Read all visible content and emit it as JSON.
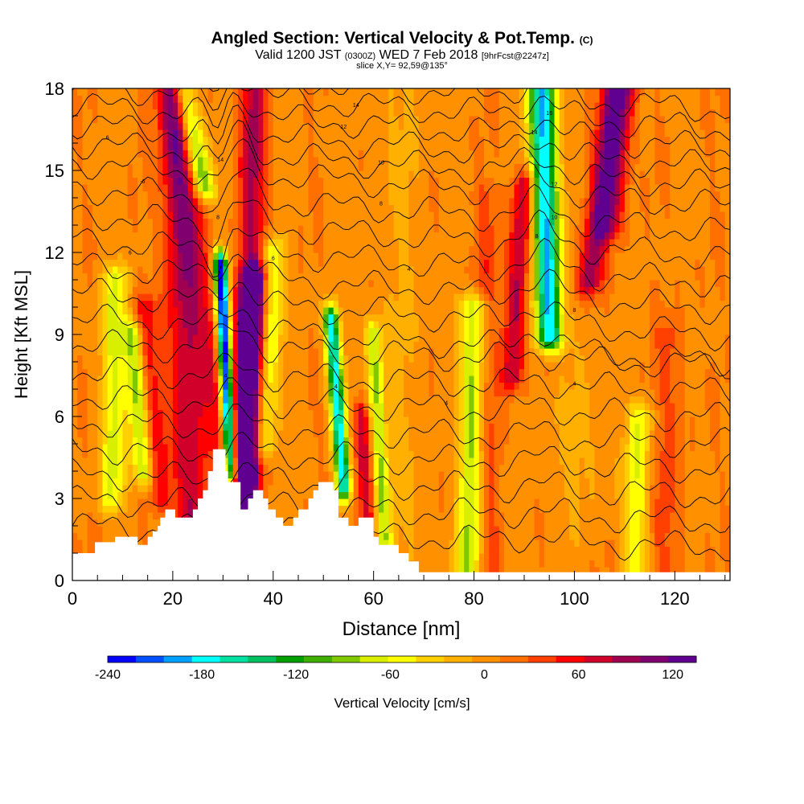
{
  "header": {
    "title": "Angled Section: Vertical Velocity & Pot.Temp.",
    "title_suffix": "(C)",
    "valid_prefix": "Valid 1200 JST",
    "valid_utc": "(0300Z)",
    "valid_day": "WED 7 Feb 2018",
    "forecast": "[9hrFcst@2247z]",
    "slice": "slice X,Y= 92,59@135°"
  },
  "chart_data": {
    "type": "heatmap",
    "xlabel": "Distance [nm]",
    "ylabel": "Height [Kft MSL]",
    "xlim": [
      0,
      131
    ],
    "ylim": [
      0,
      18
    ],
    "x_ticks": [
      0,
      20,
      40,
      60,
      80,
      100,
      120
    ],
    "y_ticks": [
      0,
      3,
      6,
      9,
      12,
      15,
      18
    ],
    "colorbar": {
      "label": "Vertical Velocity [cm/s]",
      "min": -240,
      "max": 135,
      "tick_values": [
        -240,
        -180,
        -120,
        -60,
        0,
        60,
        120
      ],
      "tick_labels": [
        "-240",
        "-180",
        "-120",
        "-60",
        "0",
        "60",
        "120"
      ],
      "colors": [
        "#0000ff",
        "#0050ff",
        "#00a0ff",
        "#00ffff",
        "#00e0a0",
        "#00c060",
        "#00a000",
        "#40b000",
        "#80c800",
        "#d8f000",
        "#ffff00",
        "#ffd000",
        "#ffb000",
        "#ff9000",
        "#ff7000",
        "#ff4000",
        "#ff0000",
        "#d0002a",
        "#a00050",
        "#800070",
        "#600090"
      ]
    },
    "terrain": [
      [
        0,
        1
      ],
      [
        4.5,
        1
      ],
      [
        4.5,
        1.4
      ],
      [
        8.5,
        1.4
      ],
      [
        8.5,
        1.6
      ],
      [
        13,
        1.6
      ],
      [
        13,
        1.3
      ],
      [
        15,
        1.3
      ],
      [
        15,
        1.6
      ],
      [
        16,
        1.6
      ],
      [
        16,
        1.8
      ],
      [
        17,
        1.8
      ],
      [
        17,
        2
      ],
      [
        17.5,
        2
      ],
      [
        17.5,
        2.3
      ],
      [
        18.5,
        2.3
      ],
      [
        18.5,
        2.6
      ],
      [
        20.5,
        2.6
      ],
      [
        20.5,
        2.3
      ],
      [
        24,
        2.3
      ],
      [
        24,
        2.6
      ],
      [
        25,
        2.6
      ],
      [
        25,
        3
      ],
      [
        26,
        3
      ],
      [
        26,
        3.3
      ],
      [
        27,
        3.3
      ],
      [
        27,
        4
      ],
      [
        28,
        4
      ],
      [
        28,
        4.8
      ],
      [
        30.5,
        4.8
      ],
      [
        30.5,
        4
      ],
      [
        31,
        4
      ],
      [
        31,
        3.6
      ],
      [
        33.5,
        3.6
      ],
      [
        33.5,
        2.6
      ],
      [
        35,
        2.6
      ],
      [
        35,
        3
      ],
      [
        36,
        3
      ],
      [
        36,
        3.3
      ],
      [
        38,
        3.3
      ],
      [
        38,
        3
      ],
      [
        39,
        3
      ],
      [
        39,
        2.6
      ],
      [
        40.5,
        2.6
      ],
      [
        40.5,
        2.3
      ],
      [
        42,
        2.3
      ],
      [
        42,
        2
      ],
      [
        44,
        2
      ],
      [
        44,
        2.3
      ],
      [
        45,
        2.3
      ],
      [
        45,
        2.6
      ],
      [
        47,
        2.6
      ],
      [
        47,
        3
      ],
      [
        48,
        3
      ],
      [
        48,
        3.3
      ],
      [
        49,
        3.3
      ],
      [
        49,
        3.6
      ],
      [
        52,
        3.6
      ],
      [
        52,
        3.3
      ],
      [
        53,
        3.3
      ],
      [
        53,
        2.3
      ],
      [
        55,
        2.3
      ],
      [
        55,
        2
      ],
      [
        57,
        2
      ],
      [
        57,
        2.3
      ],
      [
        60,
        2.3
      ],
      [
        60,
        1.6
      ],
      [
        61,
        1.6
      ],
      [
        61,
        1.3
      ],
      [
        65,
        1.3
      ],
      [
        65,
        1
      ],
      [
        67,
        1
      ],
      [
        67,
        0.7
      ],
      [
        69,
        0.7
      ],
      [
        69,
        0.3
      ],
      [
        131,
        0.3
      ]
    ],
    "updrafts": [
      {
        "name": "u1",
        "peak": 75,
        "y0": 0.5,
        "y1": 18,
        "x0": 24,
        "x1": 20,
        "width": 3.2
      },
      {
        "name": "u2",
        "peak": 55,
        "y0": 4,
        "y1": 18,
        "x0": 30,
        "x1": 20,
        "width": 2.5
      },
      {
        "name": "u3",
        "peak": 135,
        "y0": 3,
        "y1": 11,
        "x0": 33.5,
        "x1": 36,
        "width": 2.6
      },
      {
        "name": "u4",
        "peak": 80,
        "y0": 2,
        "y1": 18,
        "x0": 35,
        "x1": 36,
        "width": 2.6
      },
      {
        "name": "u5",
        "peak": 45,
        "y0": 3,
        "y1": 10,
        "x0": 18,
        "x1": 14.5,
        "width": 2.5
      },
      {
        "name": "u6",
        "peak": 70,
        "y0": 1.5,
        "y1": 6,
        "x0": 59,
        "x1": 57.5,
        "width": 1.6
      },
      {
        "name": "u7",
        "peak": 80,
        "y0": 7.5,
        "y1": 14.5,
        "x0": 87.5,
        "x1": 90,
        "width": 2.2
      },
      {
        "name": "u8",
        "peak": 90,
        "y0": 11,
        "y1": 18,
        "x0": 103,
        "x1": 108,
        "width": 2.5
      },
      {
        "name": "u9",
        "peak": 70,
        "y0": 13,
        "y1": 18,
        "x0": 107,
        "x1": 110,
        "width": 2.6
      },
      {
        "name": "u10",
        "peak": 30,
        "y0": 0.3,
        "y1": 14,
        "x0": 83,
        "x1": 82,
        "width": 2.5
      },
      {
        "name": "u11",
        "peak": 25,
        "y0": 0.3,
        "y1": 9,
        "x0": 118,
        "x1": 119,
        "width": 3
      }
    ],
    "downdrafts": [
      {
        "name": "d1",
        "peak": -110,
        "y0": 14.5,
        "y1": 18,
        "x0": 26,
        "x1": 22,
        "width": 2.3
      },
      {
        "name": "d2",
        "peak": -70,
        "y0": 3,
        "y1": 11,
        "x0": 8,
        "x1": 8.5,
        "width": 2.5
      },
      {
        "name": "d3",
        "peak": -90,
        "y0": 4,
        "y1": 9,
        "x0": 14,
        "x1": 12,
        "width": 2
      },
      {
        "name": "d4",
        "peak": -245,
        "y0": 4,
        "y1": 11.5,
        "x0": 31.5,
        "x1": 29.5,
        "width": 1.3
      },
      {
        "name": "d5",
        "peak": -70,
        "y0": 5,
        "y1": 12,
        "x0": 38,
        "x1": 40,
        "width": 2.5
      },
      {
        "name": "d6",
        "peak": -190,
        "y0": 3.5,
        "y1": 9.5,
        "x0": 54,
        "x1": 51.5,
        "width": 1.4
      },
      {
        "name": "d7",
        "peak": -80,
        "y0": 1.5,
        "y1": 9,
        "x0": 62,
        "x1": 60,
        "width": 1.6
      },
      {
        "name": "d8",
        "peak": -200,
        "y0": 9,
        "y1": 18,
        "x0": 95,
        "x1": 93.5,
        "width": 2.6
      },
      {
        "name": "d9",
        "peak": -90,
        "y0": 0.3,
        "y1": 10,
        "x0": 79,
        "x1": 80,
        "width": 2.5
      },
      {
        "name": "d10",
        "peak": -60,
        "y0": 0.3,
        "y1": 6,
        "x0": 112,
        "x1": 113,
        "width": 2.5
      }
    ],
    "contour_labels": [
      {
        "text": "6",
        "x": 7,
        "y": 16.2
      },
      {
        "text": "6",
        "x": 11.5,
        "y": 12
      },
      {
        "text": "-6",
        "x": 14,
        "y": 14.6
      },
      {
        "text": "14",
        "x": 56.5,
        "y": 17.4
      },
      {
        "text": "12",
        "x": 54,
        "y": 16.6
      },
      {
        "text": "10",
        "x": 61.5,
        "y": 15.3
      },
      {
        "text": "8",
        "x": 61.5,
        "y": 13.8
      },
      {
        "text": "6",
        "x": 40,
        "y": 11.8
      },
      {
        "text": "4",
        "x": 67,
        "y": 11.4
      },
      {
        "text": "16",
        "x": 95,
        "y": 17.1
      },
      {
        "text": "14",
        "x": 92,
        "y": 16.4
      },
      {
        "text": "12",
        "x": 96,
        "y": 14.5
      },
      {
        "text": "10",
        "x": 96,
        "y": 13.3
      },
      {
        "text": "8",
        "x": 92.5,
        "y": 12.6
      },
      {
        "text": "8",
        "x": 100,
        "y": 9.9
      },
      {
        "text": "4",
        "x": 100,
        "y": 7.2
      },
      {
        "text": "4",
        "x": 74.5,
        "y": 6.5
      },
      {
        "text": "14",
        "x": 29.5,
        "y": 15.4
      },
      {
        "text": "8",
        "x": 29,
        "y": 13.3
      },
      {
        "text": "4",
        "x": 33,
        "y": 9.4
      },
      {
        "text": "4",
        "x": 30.5,
        "y": 7.5
      },
      {
        "text": "4",
        "x": 52.5,
        "y": 7.1
      }
    ]
  }
}
